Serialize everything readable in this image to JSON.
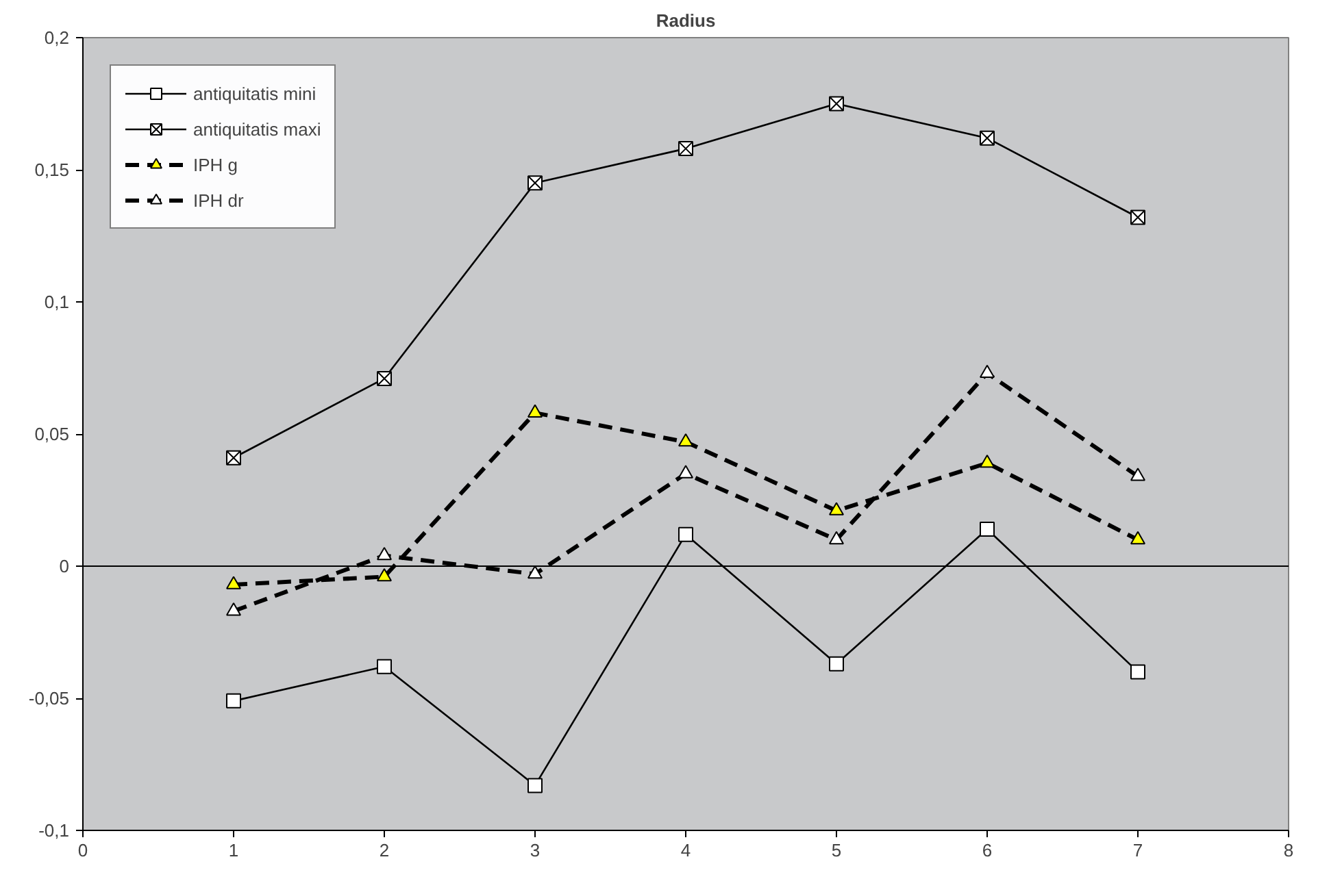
{
  "chart_data": {
    "type": "line",
    "title": "Radius",
    "x": [
      1,
      2,
      3,
      4,
      5,
      6,
      7
    ],
    "series": [
      {
        "name": "antiquitatis mini",
        "color": "#ffffff",
        "marker": "square",
        "line_style": "solid",
        "values": [
          -0.051,
          -0.038,
          -0.083,
          0.012,
          -0.037,
          0.014,
          -0.04
        ]
      },
      {
        "name": "antiquitatis maxi",
        "color": "#ffffff",
        "marker": "cross",
        "line_style": "solid",
        "values": [
          0.041,
          0.071,
          0.145,
          0.158,
          0.175,
          0.162,
          0.132
        ]
      },
      {
        "name": "IPH g",
        "color": "#ffff00",
        "marker": "triangle",
        "line_style": "dashed",
        "values": [
          -0.007,
          -0.004,
          0.058,
          0.047,
          0.021,
          0.039,
          0.01
        ]
      },
      {
        "name": "IPH dr",
        "color": "#ffffff",
        "marker": "triangle",
        "line_style": "dashed",
        "values": [
          -0.017,
          0.004,
          -0.003,
          0.035,
          0.01,
          0.073,
          0.034
        ]
      }
    ],
    "xlim": [
      0,
      8
    ],
    "xticks": [
      0,
      1,
      2,
      3,
      4,
      5,
      6,
      7,
      8
    ],
    "ylim": [
      -0.1,
      0.2
    ],
    "yticks": [
      {
        "value": -0.1,
        "label": "-0,1"
      },
      {
        "value": -0.05,
        "label": "-0,05"
      },
      {
        "value": 0,
        "label": "0"
      },
      {
        "value": 0.05,
        "label": "0,05"
      },
      {
        "value": 0.1,
        "label": "0,1"
      },
      {
        "value": 0.15,
        "label": "0,15"
      },
      {
        "value": 0.2,
        "label": "0,2"
      }
    ],
    "ref_lines": [
      {
        "axis": "y",
        "value": 0,
        "color": "#000000"
      }
    ],
    "grid": false,
    "legend": "top left"
  }
}
